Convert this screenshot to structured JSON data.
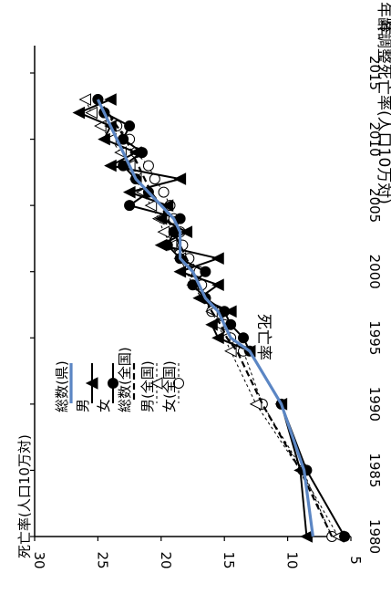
{
  "chart_data": {
    "type": "line",
    "title": "年齢調整死亡率(人口10万対)",
    "subtitle": "死亡率",
    "xlabel": "年",
    "ylabel": "死亡率(人口10万対)",
    "xlim": [
      1980,
      2015
    ],
    "ylim": [
      5,
      30
    ],
    "xticks": [
      "1980",
      "1985",
      "1990",
      "1995",
      "2000",
      "2005",
      "2010",
      "2015"
    ],
    "yticks": [
      "5",
      "10",
      "15",
      "20",
      "25",
      "30"
    ],
    "legend": [
      "総数(県)",
      "男",
      "女",
      "総数(全国)",
      "男(全国)",
      "女(全国)"
    ],
    "series": [
      {
        "name": "総数(県)",
        "color": "#5b86c4",
        "style": "thick",
        "x": [
          1980,
          1985,
          1990,
          1994,
          1995,
          1996,
          1997,
          1998,
          1999,
          2000,
          2001,
          2002,
          2003,
          2004,
          2005,
          2006,
          2007,
          2008,
          2009,
          2010,
          2011,
          2012,
          2013
        ],
        "y": [
          8.0,
          8.7,
          10.5,
          13.0,
          14.5,
          15.0,
          15.5,
          16.5,
          17.0,
          17.5,
          18.5,
          18.5,
          18.5,
          19.0,
          20.0,
          21.0,
          22.0,
          22.5,
          23.0,
          23.5,
          24.0,
          24.5,
          25.0
        ]
      },
      {
        "name": "男",
        "color": "#000000",
        "marker": "triangle",
        "x": [
          1980,
          1985,
          1990,
          1994,
          1995,
          1996,
          1997,
          1998,
          1999,
          2000,
          2001,
          2002,
          2003,
          2004,
          2005,
          2006,
          2007,
          2008,
          2009,
          2010,
          2011,
          2012,
          2013
        ],
        "y": [
          8.5,
          9.0,
          10.5,
          13.0,
          15.5,
          16.0,
          14.5,
          17.0,
          15.5,
          18.5,
          15.5,
          20.0,
          18.0,
          20.0,
          19.5,
          22.5,
          18.5,
          24.0,
          22.0,
          24.5,
          24.0,
          26.5,
          24.0
        ]
      },
      {
        "name": "女",
        "color": "#000000",
        "marker": "circle",
        "x": [
          1980,
          1985,
          1990,
          1994,
          1995,
          1996,
          1997,
          1998,
          1999,
          2000,
          2001,
          2002,
          2003,
          2004,
          2005,
          2006,
          2007,
          2008,
          2009,
          2010,
          2011,
          2012,
          2013
        ],
        "y": [
          5.5,
          8.5,
          10.5,
          13.0,
          13.5,
          14.5,
          15.0,
          16.5,
          17.5,
          16.5,
          18.5,
          19.5,
          19.0,
          18.5,
          22.5,
          21.0,
          22.0,
          23.0,
          21.5,
          23.0,
          22.5,
          24.5,
          25.0
        ]
      },
      {
        "name": "総数(全国)",
        "color": "#000000",
        "style": "dash",
        "x": [
          1980,
          1985,
          1990,
          1994,
          1995,
          1996,
          1997,
          1998,
          1999,
          2000,
          2001,
          2002,
          2003,
          2004,
          2005,
          2006,
          2007,
          2008,
          2009,
          2010,
          2011,
          2012,
          2013
        ],
        "y": [
          6.5,
          9.0,
          12.0,
          14.0,
          14.8,
          15.3,
          16.0,
          16.5,
          17.0,
          17.5,
          18.0,
          18.5,
          19.0,
          19.5,
          20.0,
          20.8,
          21.3,
          21.8,
          22.3,
          22.8,
          23.5,
          24.2,
          25.0
        ]
      },
      {
        "name": "男(全国)",
        "color": "#000000",
        "style": "thin-dash",
        "marker": "open-triangle",
        "x": [
          1980,
          1985,
          1990,
          1994,
          1995,
          1996,
          1997,
          1998,
          1999,
          2000,
          2001,
          2002,
          2003,
          2004,
          2005,
          2006,
          2007,
          2008,
          2009,
          2010,
          2011,
          2012,
          2013
        ],
        "y": [
          6.0,
          9.0,
          12.5,
          14.5,
          15.0,
          15.5,
          16.0,
          16.8,
          17.5,
          18.0,
          18.5,
          19.2,
          19.8,
          20.2,
          20.8,
          21.5,
          22.0,
          22.5,
          23.2,
          24.0,
          24.8,
          25.5,
          26.0
        ]
      },
      {
        "name": "女(全国)",
        "color": "#000000",
        "style": "thin-dash",
        "marker": "open-circle",
        "x": [
          1980,
          1985,
          1990,
          1994,
          1995,
          1996,
          1997,
          1998,
          1999,
          2000,
          2001,
          2002,
          2003,
          2004,
          2005,
          2006,
          2007,
          2008,
          2009,
          2010,
          2011,
          2012,
          2013
        ],
        "y": [
          6.5,
          8.8,
          12.0,
          13.5,
          14.5,
          15.0,
          16.0,
          16.5,
          16.8,
          17.0,
          17.8,
          18.3,
          18.5,
          19.0,
          19.3,
          19.8,
          20.5,
          21.0,
          22.0,
          22.5,
          23.5,
          24.5,
          25.0
        ]
      }
    ]
  }
}
